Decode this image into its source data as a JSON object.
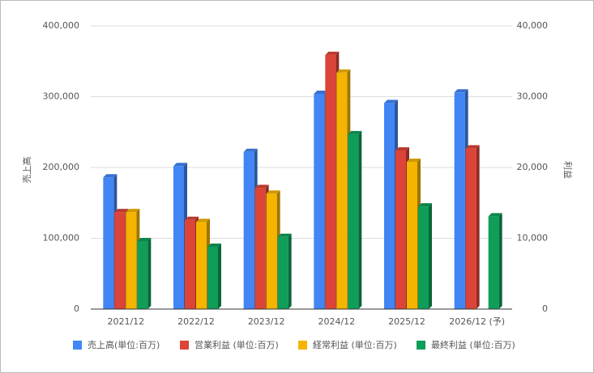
{
  "chart_data": {
    "type": "bar3d",
    "categories": [
      "2021/12",
      "2022/12",
      "2023/12",
      "2024/12",
      "2025/12",
      "2026/12 (予)"
    ],
    "y_label": "売上高",
    "y2_label": "利益",
    "series": [
      {
        "name": "売上高(単位:百万)",
        "color": "#4285f4",
        "values": [
          186000,
          202000,
          222000,
          304000,
          291000,
          306000
        ]
      },
      {
        "name": "営業利益 (単位:百万)",
        "color": "#db4437",
        "axis": "y2",
        "values": [
          13700,
          12600,
          17100,
          35900,
          22400,
          22700
        ]
      },
      {
        "name": "経常利益 (単位:百万)",
        "color": "#f4b400",
        "axis": "y2",
        "values": [
          13700,
          12300,
          16300,
          33400,
          20800,
          null
        ]
      },
      {
        "name": "最終利益 (単位:百万)",
        "color": "#0f9d58",
        "axis": "y2",
        "values": [
          9600,
          8800,
          10200,
          24700,
          14500,
          13100
        ]
      }
    ],
    "ylim": [
      0,
      400000
    ],
    "yticks": [
      0,
      {
        "value": 100000,
        "label": "100,000"
      },
      {
        "value": 200000,
        "label": "200,000"
      },
      {
        "value": 300000,
        "label": "300,000"
      },
      {
        "value": 400000,
        "label": "400,000"
      }
    ],
    "y2lim": [
      0,
      40000
    ],
    "y2ticks": [
      0,
      {
        "value": 10000,
        "label": "10,000"
      },
      {
        "value": 20000,
        "label": "20,000"
      },
      {
        "value": 30000,
        "label": "30,000"
      },
      {
        "value": 40000,
        "label": "40,000"
      }
    ],
    "grid": true
  }
}
